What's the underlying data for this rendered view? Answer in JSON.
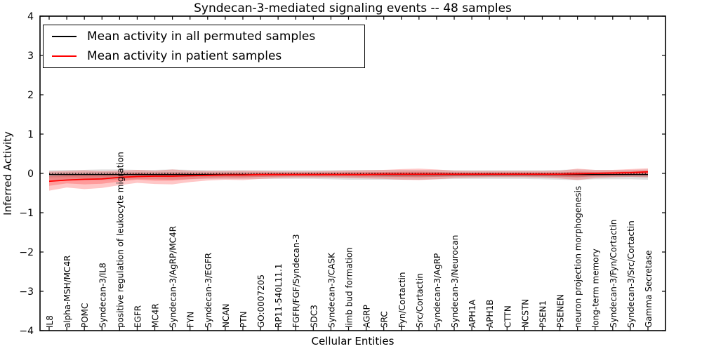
{
  "figure": {
    "title": "Syndecan-3-mediated signaling events -- 48 samples",
    "xlabel": "Cellular Entities",
    "ylabel": "Inferred Activity"
  },
  "legend": {
    "position": "upper left",
    "items": [
      {
        "label": "Mean activity in all permuted samples",
        "color": "#000000"
      },
      {
        "label": "Mean activity in patient samples",
        "color": "#ff0000"
      }
    ]
  },
  "colors": {
    "permuted_line": "#000000",
    "patient_line": "#ff0000",
    "permuted_band": "rgba(128,128,128,0.25)",
    "patient_band": "rgba(255,0,0,0.22)",
    "axis": "#000000"
  },
  "chart_data": {
    "type": "line",
    "title": "Syndecan-3-mediated signaling events -- 48 samples",
    "xlabel": "Cellular Entities",
    "ylabel": "Inferred Activity",
    "ylim": [
      -4,
      4
    ],
    "yticks": [
      -4,
      -3,
      -2,
      -1,
      0,
      1,
      2,
      3,
      4
    ],
    "grid": false,
    "legend_position": "upper left",
    "categories": [
      "IL8",
      "alpha-MSH/MC4R",
      "POMC",
      "Syndecan-3/IL8",
      "positive regulation of leukocyte migration",
      "EGFR",
      "MC4R",
      "Syndecan-3/AgRP/MC4R",
      "FYN",
      "Syndecan-3/EGFR",
      "NCAN",
      "PTN",
      "GO:0007205",
      "RP11-540L11.1",
      "FGFR/FGF/Syndecan-3",
      "SDC3",
      "Syndecan-3/CASK",
      "limb bud formation",
      "AGRP",
      "SRC",
      "Fyn/Cortactin",
      "Src/Cortactin",
      "Syndecan-3/AgRP",
      "Syndecan-3/Neurocan",
      "APH1A",
      "APH1B",
      "CTTN",
      "NCSTN",
      "PSEN1",
      "PSENEN",
      "neuron projection morphogenesis",
      "long-term memory",
      "Syndecan-3/Fyn/Cortactin",
      "Syndecan-3/Src/Cortactin",
      "Gamma Secretase"
    ],
    "series": [
      {
        "name": "Mean activity in all permuted samples",
        "color": "#000000",
        "style": "solid",
        "values": [
          -0.03,
          -0.03,
          -0.03,
          -0.03,
          -0.03,
          -0.03,
          -0.03,
          -0.03,
          -0.03,
          -0.03,
          -0.03,
          -0.03,
          -0.03,
          -0.03,
          -0.03,
          -0.03,
          -0.03,
          -0.03,
          -0.03,
          -0.03,
          -0.03,
          -0.03,
          -0.03,
          -0.03,
          -0.03,
          -0.03,
          -0.03,
          -0.03,
          -0.03,
          -0.03,
          -0.03,
          -0.03,
          -0.03,
          -0.03,
          -0.03
        ]
      },
      {
        "name": "Mean activity in patient samples",
        "color": "#ff0000",
        "style": "solid",
        "values": [
          -0.2,
          -0.17,
          -0.15,
          -0.14,
          -0.1,
          -0.08,
          -0.07,
          -0.07,
          -0.06,
          -0.05,
          -0.04,
          -0.04,
          -0.03,
          -0.03,
          -0.03,
          -0.03,
          -0.03,
          -0.03,
          -0.03,
          -0.02,
          -0.02,
          -0.02,
          -0.02,
          -0.02,
          -0.02,
          -0.02,
          -0.02,
          -0.02,
          -0.02,
          -0.02,
          -0.01,
          0.0,
          0.01,
          0.02,
          0.04
        ]
      }
    ],
    "bands": [
      {
        "name": "permuted-sample-range",
        "color": "rgba(128,128,128,0.25)",
        "upper": [
          0.08,
          0.09,
          0.09,
          0.1,
          0.1,
          0.09,
          0.09,
          0.1,
          0.09,
          0.08,
          0.08,
          0.08,
          0.08,
          0.08,
          0.08,
          0.08,
          0.08,
          0.09,
          0.09,
          0.09,
          0.09,
          0.09,
          0.09,
          0.08,
          0.08,
          0.08,
          0.08,
          0.08,
          0.08,
          0.09,
          0.1,
          0.09,
          0.09,
          0.09,
          0.1
        ],
        "lower": [
          -0.16,
          -0.16,
          -0.17,
          -0.17,
          -0.16,
          -0.15,
          -0.15,
          -0.16,
          -0.15,
          -0.14,
          -0.14,
          -0.14,
          -0.14,
          -0.14,
          -0.14,
          -0.14,
          -0.15,
          -0.16,
          -0.16,
          -0.16,
          -0.16,
          -0.16,
          -0.15,
          -0.14,
          -0.14,
          -0.14,
          -0.14,
          -0.14,
          -0.15,
          -0.16,
          -0.17,
          -0.15,
          -0.15,
          -0.15,
          -0.16
        ]
      },
      {
        "name": "patient-sample-range",
        "color": "rgba(255,0,0,0.22)",
        "upper": [
          0.05,
          0.06,
          0.08,
          0.06,
          0.07,
          0.09,
          0.07,
          0.1,
          0.07,
          0.06,
          0.06,
          0.07,
          0.06,
          0.05,
          0.05,
          0.05,
          0.06,
          0.07,
          0.08,
          0.09,
          0.11,
          0.12,
          0.1,
          0.07,
          0.06,
          0.06,
          0.06,
          0.06,
          0.06,
          0.07,
          0.12,
          0.09,
          0.09,
          0.11,
          0.13
        ],
        "lower": [
          -0.44,
          -0.36,
          -0.4,
          -0.37,
          -0.3,
          -0.24,
          -0.27,
          -0.28,
          -0.22,
          -0.18,
          -0.16,
          -0.17,
          -0.14,
          -0.12,
          -0.11,
          -0.11,
          -0.11,
          -0.12,
          -0.13,
          -0.14,
          -0.16,
          -0.17,
          -0.15,
          -0.12,
          -0.11,
          -0.1,
          -0.1,
          -0.1,
          -0.11,
          -0.13,
          -0.17,
          -0.12,
          -0.1,
          -0.09,
          -0.1
        ]
      }
    ],
    "reference_line": {
      "value": 0,
      "style": "dotted",
      "color": "#000000"
    }
  }
}
